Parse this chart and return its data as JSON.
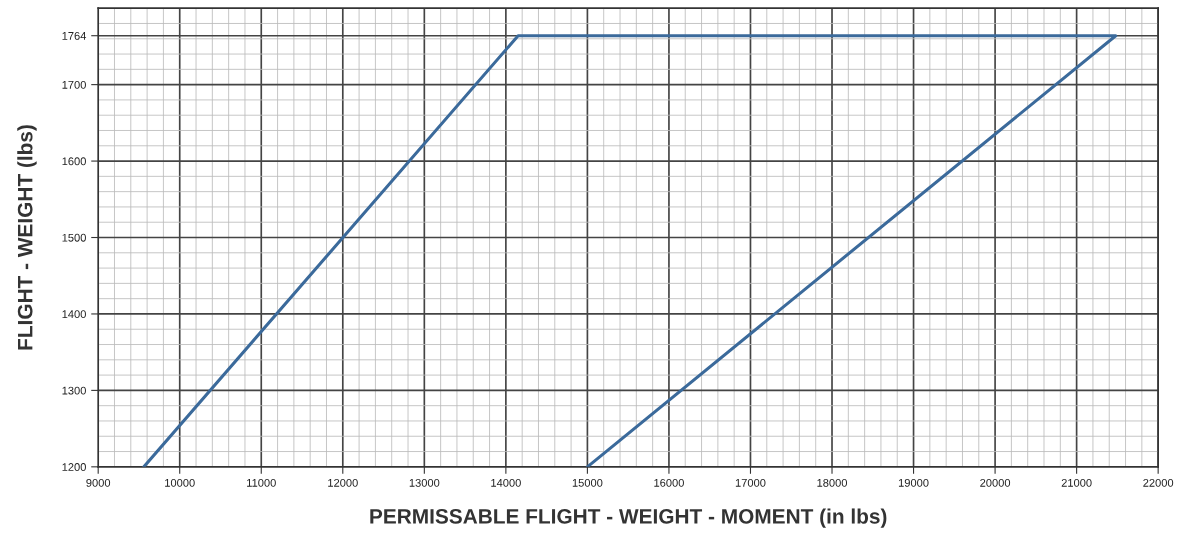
{
  "chart_data": {
    "type": "line",
    "xlabel": "PERMISSABLE FLIGHT - WEIGHT - MOMENT (in lbs)",
    "ylabel": "FLIGHT - WEIGHT (lbs)",
    "series": [
      {
        "color": "#3b6a9b",
        "x": [
          9560,
          14150,
          21480,
          15000
        ],
        "values": [
          1200,
          1764,
          1764,
          1200
        ]
      }
    ],
    "xlim": [
      9000,
      22000
    ],
    "xticks": [
      9000,
      10000,
      11000,
      12000,
      13000,
      14000,
      15000,
      16000,
      17000,
      18000,
      19000,
      20000,
      21000,
      22000
    ],
    "ylim": [
      1200,
      1800
    ],
    "yticks": [
      1200,
      1300,
      1400,
      1500,
      1600,
      1700,
      {
        "value": 1764,
        "label": "1764"
      }
    ],
    "grid": true,
    "marker": "none",
    "line_style": "solid"
  }
}
